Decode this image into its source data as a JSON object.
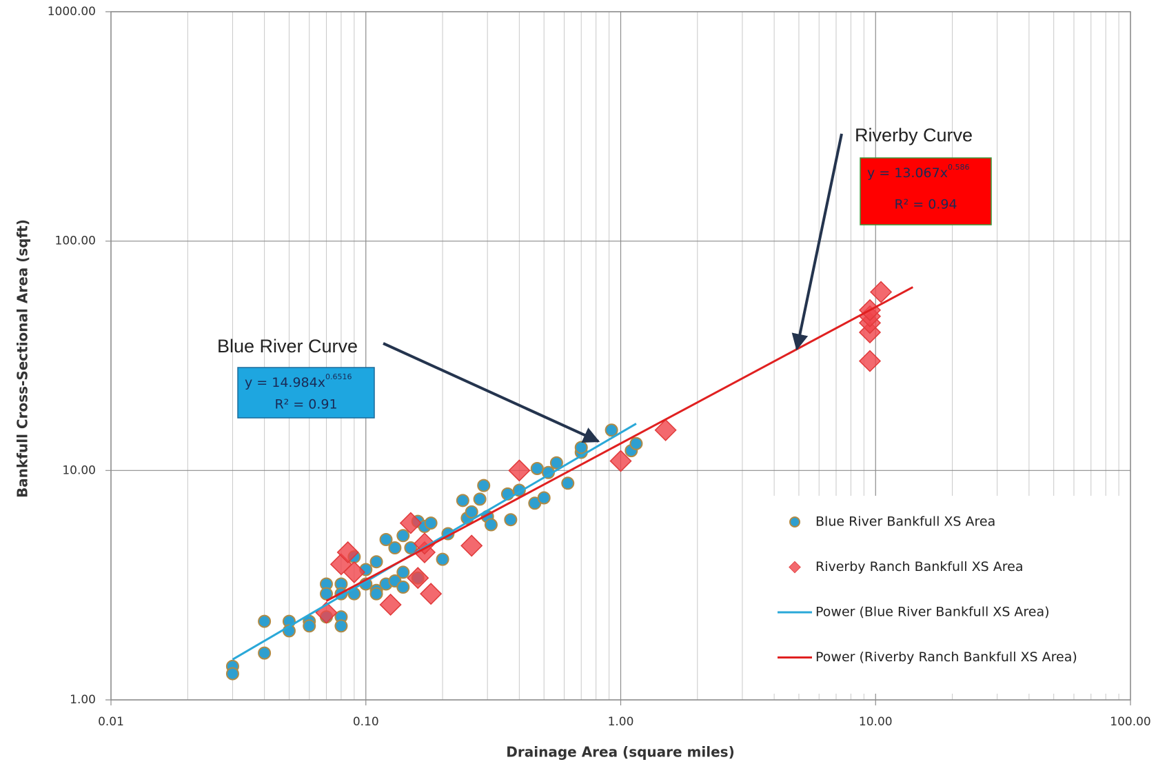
{
  "chart_data": {
    "type": "scatter",
    "log_x": true,
    "log_y": true,
    "grid": true,
    "xlabel": "Drainage Area (square miles)",
    "ylabel": "Bankfull Cross-Sectional Area (sqft)",
    "xlim": [
      0.01,
      100
    ],
    "ylim": [
      1,
      1000
    ],
    "xticks": [
      {
        "value": 0.01,
        "label": "0.01"
      },
      {
        "value": 0.1,
        "label": "0.10"
      },
      {
        "value": 1,
        "label": "1.00"
      },
      {
        "value": 10,
        "label": "10.00"
      },
      {
        "value": 100,
        "label": "100.00"
      }
    ],
    "yticks": [
      {
        "value": 1,
        "label": "1.00"
      },
      {
        "value": 10,
        "label": "10.00"
      },
      {
        "value": 100,
        "label": "100.00"
      },
      {
        "value": 1000,
        "label": "1000.00"
      }
    ],
    "series": [
      {
        "name": "Blue River Bankfull XS Area",
        "kind": "circle",
        "color": "#2e9fd0",
        "x": [
          0.03,
          0.03,
          0.04,
          0.04,
          0.05,
          0.05,
          0.06,
          0.06,
          0.07,
          0.07,
          0.07,
          0.08,
          0.08,
          0.08,
          0.08,
          0.09,
          0.09,
          0.1,
          0.1,
          0.11,
          0.11,
          0.11,
          0.12,
          0.12,
          0.13,
          0.13,
          0.14,
          0.14,
          0.14,
          0.15,
          0.16,
          0.16,
          0.17,
          0.18,
          0.2,
          0.21,
          0.24,
          0.25,
          0.26,
          0.28,
          0.29,
          0.3,
          0.31,
          0.36,
          0.37,
          0.4,
          0.46,
          0.47,
          0.5,
          0.52,
          0.56,
          0.62,
          0.7,
          0.7,
          0.92,
          1.1,
          1.15
        ],
        "values": [
          1.4,
          1.3,
          2.2,
          1.6,
          2.2,
          2.0,
          2.2,
          2.1,
          3.2,
          2.9,
          2.3,
          3.2,
          2.9,
          2.3,
          2.1,
          4.2,
          2.9,
          3.7,
          3.2,
          4.0,
          3.0,
          2.9,
          5.0,
          3.2,
          4.6,
          3.3,
          5.2,
          3.6,
          3.1,
          4.6,
          6.0,
          3.4,
          5.7,
          5.9,
          4.1,
          5.3,
          7.4,
          6.2,
          6.6,
          7.5,
          8.6,
          6.3,
          5.8,
          7.9,
          6.1,
          8.2,
          7.2,
          10.2,
          7.6,
          9.8,
          10.8,
          8.8,
          12.0,
          12.6,
          15.0,
          12.2,
          13.1
        ]
      },
      {
        "name": "Riverby Ranch Bankfull XS Area",
        "kind": "diamond",
        "color": "#f0444a",
        "x": [
          0.07,
          0.08,
          0.085,
          0.09,
          0.125,
          0.15,
          0.16,
          0.17,
          0.17,
          0.18,
          0.26,
          0.4,
          1.0,
          1.5,
          9.5,
          9.5,
          9.5,
          9.5,
          9.5,
          10.5
        ],
        "values": [
          2.4,
          3.9,
          4.4,
          3.6,
          2.6,
          5.9,
          3.4,
          4.4,
          4.8,
          2.9,
          4.7,
          10.0,
          11.0,
          15.0,
          30,
          40,
          44,
          47,
          50,
          60
        ]
      },
      {
        "name": "Power (Blue River Bankfull XS Area)",
        "kind": "line",
        "color": "#2aa8d8",
        "x": [
          0.03,
          1.15
        ],
        "values": [
          1.5,
          16
        ]
      },
      {
        "name": "Power (Riverby Ranch Bankfull XS Area)",
        "kind": "line",
        "color": "#e02020",
        "x": [
          0.07,
          14
        ],
        "values": [
          2.7,
          63
        ]
      }
    ],
    "annotations": [
      {
        "text": "Blue River Curve",
        "base": "y = 14.984x",
        "exponent": "0.6516",
        "r2": "R² = 0.91",
        "color": "#1ea6e0"
      },
      {
        "text": "Riverby Curve",
        "base": "y = 13.067x",
        "exponent": "0.586",
        "r2": "R² = 0.94",
        "color": "#ff0000"
      }
    ]
  }
}
